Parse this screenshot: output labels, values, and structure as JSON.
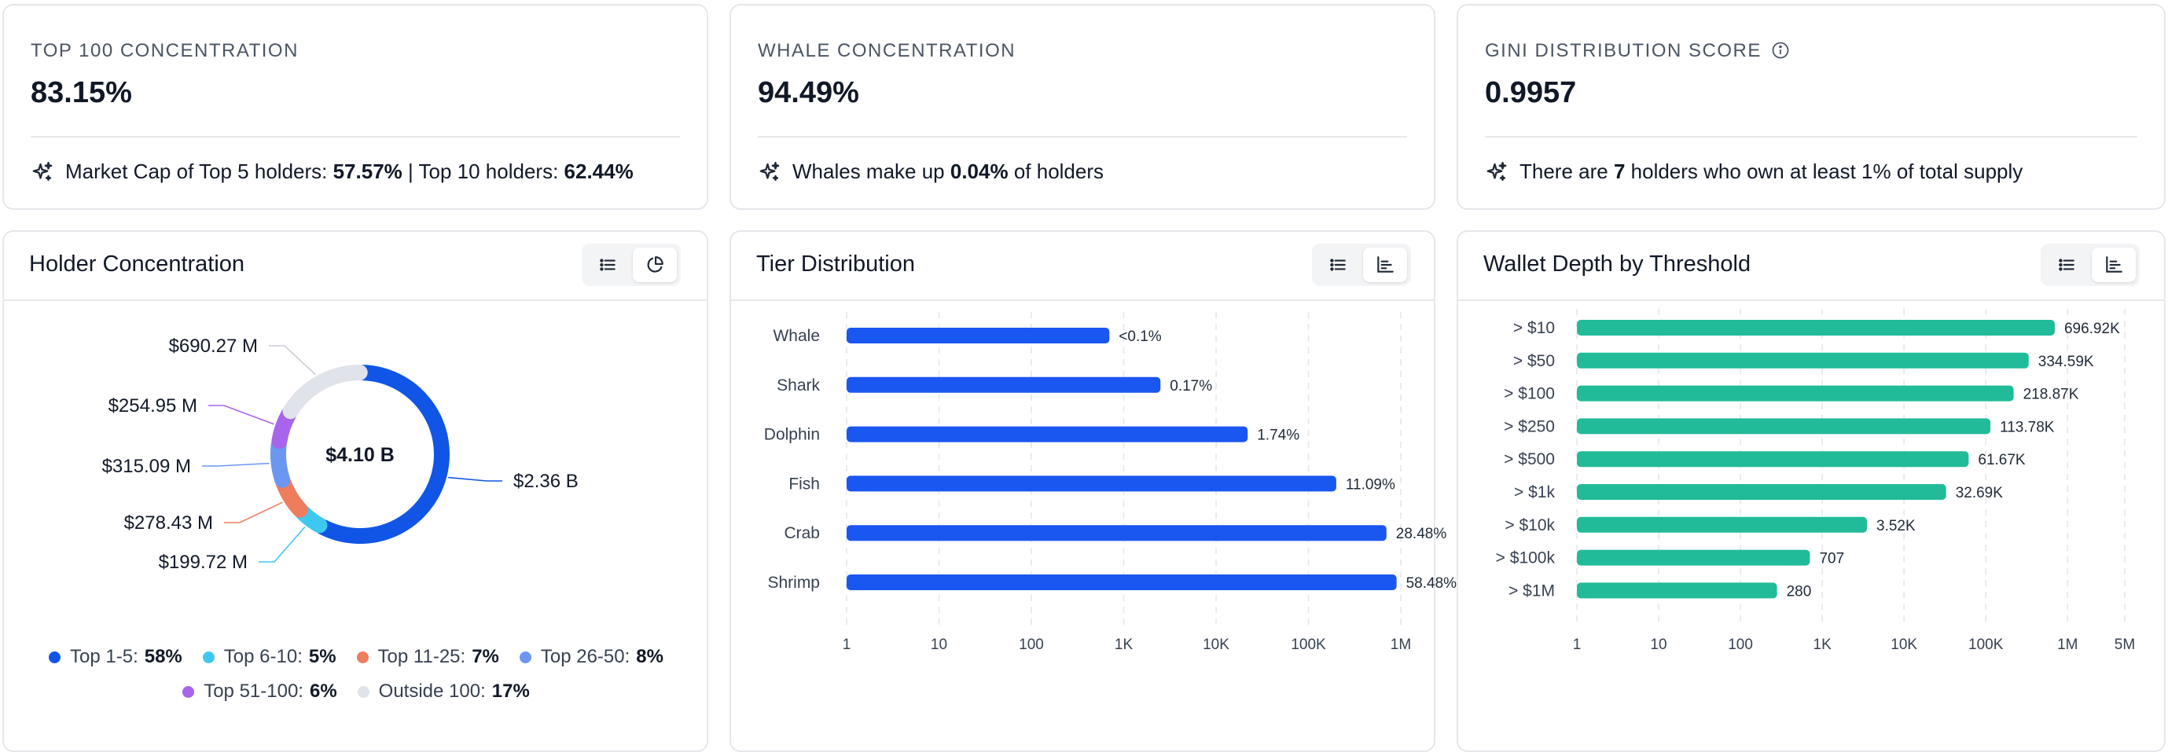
{
  "stats": [
    {
      "label": "TOP 100 CONCENTRATION",
      "value": "83.15%",
      "insight": [
        {
          "text": "Market Cap of Top 5 holders: ",
          "bold": false
        },
        {
          "text": "57.57%",
          "bold": true
        },
        {
          "text": " | Top 10 holders: ",
          "bold": false
        },
        {
          "text": "62.44%",
          "bold": true
        }
      ]
    },
    {
      "label": "WHALE CONCENTRATION",
      "value": "94.49%",
      "insight": [
        {
          "text": "Whales make up ",
          "bold": false
        },
        {
          "text": "0.04%",
          "bold": true
        },
        {
          "text": " of holders",
          "bold": false
        }
      ]
    },
    {
      "label": "GINI DISTRIBUTION SCORE",
      "value": "0.9957",
      "info_icon": "info-icon",
      "insight": [
        {
          "text": "There are ",
          "bold": false
        },
        {
          "text": "7",
          "bold": true
        },
        {
          "text": " holders who own at least 1% of total supply",
          "bold": false
        }
      ]
    }
  ],
  "holder_concentration": {
    "title": "Holder Concentration",
    "toggle_icons": [
      "list-icon",
      "pie-chart-icon"
    ],
    "active_toggle": 1,
    "center_label": "$4.10 B",
    "segments": [
      {
        "label": "Top 1-5",
        "pct": "58%",
        "share": 0.5757,
        "value_label": "$2.36 B",
        "color": "#1155e6"
      },
      {
        "label": "Top 6-10",
        "pct": "5%",
        "share": 0.0487,
        "value_label": "$199.72 M",
        "color": "#3ec8f0"
      },
      {
        "label": "Top 11-25",
        "pct": "7%",
        "share": 0.0679,
        "value_label": "$278.43 M",
        "color": "#f07c5e"
      },
      {
        "label": "Top 26-50",
        "pct": "8%",
        "share": 0.0769,
        "value_label": "$315.09 M",
        "color": "#6b97f0"
      },
      {
        "label": "Top 51-100",
        "pct": "6%",
        "share": 0.0622,
        "value_label": "$254.95 M",
        "color": "#a864ea"
      },
      {
        "label": "Outside 100",
        "pct": "17%",
        "share": 0.1685,
        "value_label": "$690.27 M",
        "color": "#e0e3ea"
      }
    ]
  },
  "tier_distribution": {
    "title": "Tier Distribution",
    "toggle_icons": [
      "list-icon",
      "bar-chart-icon"
    ],
    "active_toggle": 1,
    "chart_data": {
      "type": "bar",
      "orientation": "horizontal",
      "x_scale": "log",
      "xlim": [
        1,
        1000000
      ],
      "ticks": [
        1,
        10,
        100,
        1000,
        10000,
        100000,
        1000000
      ],
      "tick_labels": [
        "1",
        "10",
        "100",
        "1K",
        "10K",
        "100K",
        "1M"
      ],
      "color": "#1a56f0",
      "categories": [
        "Whale",
        "Shark",
        "Dolphin",
        "Fish",
        "Crab",
        "Shrimp"
      ],
      "values": [
        700,
        2500,
        22000,
        200000,
        700000,
        900000
      ],
      "data_labels": [
        "<0.1%",
        "0.17%",
        "1.74%",
        "11.09%",
        "28.48%",
        "58.48%"
      ]
    }
  },
  "wallet_depth": {
    "title": "Wallet Depth by Threshold",
    "toggle_icons": [
      "list-icon",
      "bar-chart-icon"
    ],
    "active_toggle": 1,
    "chart_data": {
      "type": "bar",
      "orientation": "horizontal",
      "x_scale": "log",
      "xlim": [
        1,
        5000000
      ],
      "ticks": [
        1,
        10,
        100,
        1000,
        10000,
        100000,
        1000000,
        5000000
      ],
      "tick_labels": [
        "1",
        "10",
        "100",
        "1K",
        "10K",
        "100K",
        "1M",
        "5M"
      ],
      "color": "#22bb99",
      "categories": [
        "> $10",
        "> $50",
        "> $100",
        "> $250",
        "> $500",
        "> $1k",
        "> $10k",
        "> $100k",
        "> $1M"
      ],
      "values": [
        696920,
        334590,
        218870,
        113780,
        61670,
        32690,
        3520,
        707,
        280
      ],
      "data_labels": [
        "696.92K",
        "334.59K",
        "218.87K",
        "113.78K",
        "61.67K",
        "32.69K",
        "3.52K",
        "707",
        "280"
      ]
    }
  }
}
